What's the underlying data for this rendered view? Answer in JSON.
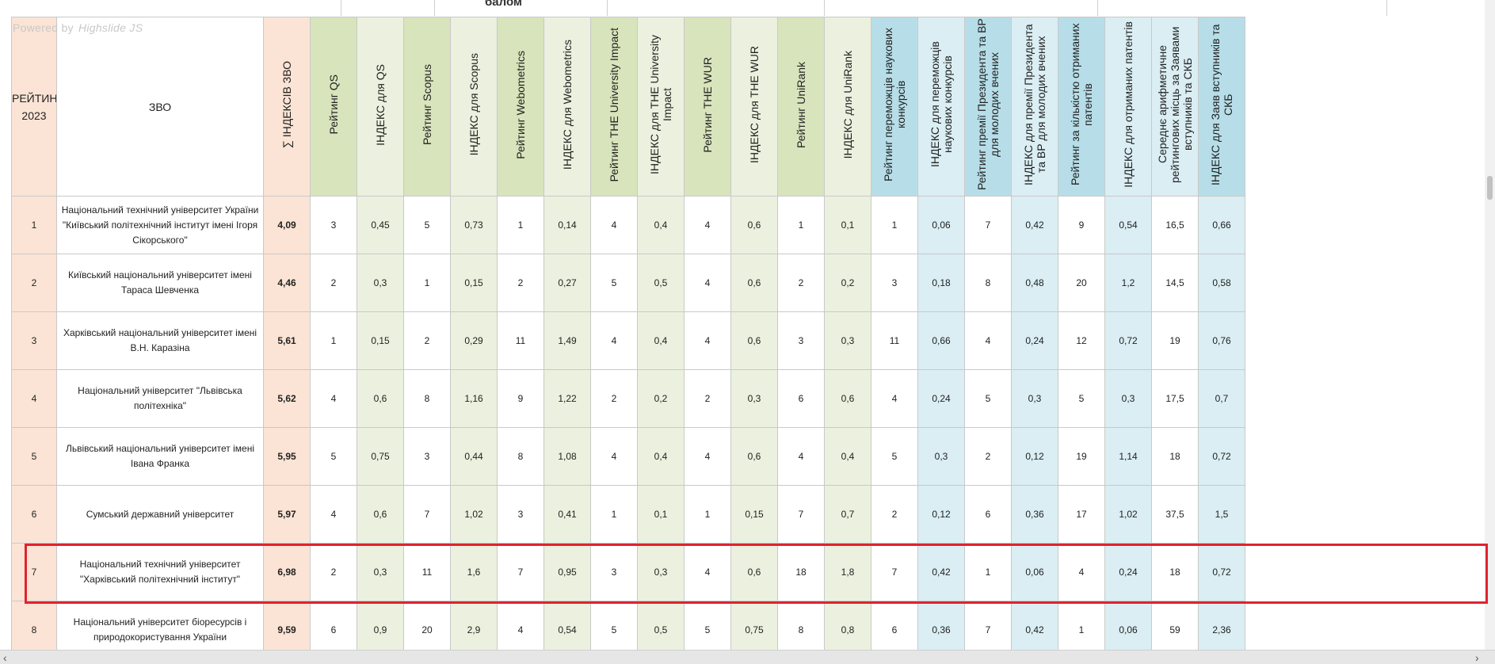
{
  "viewer": {
    "powered_by": "Powered by",
    "powered_brand": "Highslide JS",
    "top_strip_fragment": "балом"
  },
  "table": {
    "headers": {
      "rank": [
        "РЕЙТИНГ",
        "2023"
      ],
      "name": "ЗВО",
      "sum": "∑ ІНДЕКСІВ ЗВО",
      "cols": [
        "Рейтинг QS",
        "ІНДЕКС для QS",
        "Рейтинг Scopus",
        "ІНДЕКС для Scopus",
        "Рейтинг Webometrics",
        "ІНДЕКС для Webometrics",
        "Рейтинг THE University Impact",
        "ІНДЕКС для THE University Impact",
        "Рейтинг THE  WUR",
        "ІНДЕКС для THE  WUR",
        "Рейтинг UniRank",
        "ІНДЕКС для UniRank",
        "Рейтинг переможців наукових конкурсів",
        "ІНДЕКС для переможців наукових конкурсів",
        "Рейтинг премії Президента та ВР для молодих вчених",
        "ІНДЕКС для премії Президента та ВР для молодих вчених",
        "Рейтинг за кількістю отриманих  патентів",
        "ІНДЕКС для отриманих патентів",
        "Середнє арифметичне рейтингових місць за Заявами вступників та СКБ",
        "ІНДЕКС для Заяв вступників та СКБ"
      ]
    },
    "rows": [
      {
        "rank": "1",
        "name": "Національний технічний університет України \"Київський політехнічний інститут імені Ігоря Сікорського\"",
        "sum": "4,09",
        "values": [
          "3",
          "0,45",
          "5",
          "0,73",
          "1",
          "0,14",
          "4",
          "0,4",
          "4",
          "0,6",
          "1",
          "0,1",
          "1",
          "0,06",
          "7",
          "0,42",
          "9",
          "0,54",
          "16,5",
          "0,66"
        ]
      },
      {
        "rank": "2",
        "name": "Київський національний університет імені Тараса Шевченка",
        "sum": "4,46",
        "values": [
          "2",
          "0,3",
          "1",
          "0,15",
          "2",
          "0,27",
          "5",
          "0,5",
          "4",
          "0,6",
          "2",
          "0,2",
          "3",
          "0,18",
          "8",
          "0,48",
          "20",
          "1,2",
          "14,5",
          "0,58"
        ]
      },
      {
        "rank": "3",
        "name": "Харківський національний університет імені В.Н. Каразіна",
        "sum": "5,61",
        "values": [
          "1",
          "0,15",
          "2",
          "0,29",
          "11",
          "1,49",
          "4",
          "0,4",
          "4",
          "0,6",
          "3",
          "0,3",
          "11",
          "0,66",
          "4",
          "0,24",
          "12",
          "0,72",
          "19",
          "0,76"
        ]
      },
      {
        "rank": "4",
        "name": "Національний університет \"Львівська політехніка\"",
        "sum": "5,62",
        "values": [
          "4",
          "0,6",
          "8",
          "1,16",
          "9",
          "1,22",
          "2",
          "0,2",
          "2",
          "0,3",
          "6",
          "0,6",
          "4",
          "0,24",
          "5",
          "0,3",
          "5",
          "0,3",
          "17,5",
          "0,7"
        ]
      },
      {
        "rank": "5",
        "name": "Львівський національний університет імені Івана Франка",
        "sum": "5,95",
        "values": [
          "5",
          "0,75",
          "3",
          "0,44",
          "8",
          "1,08",
          "4",
          "0,4",
          "4",
          "0,6",
          "4",
          "0,4",
          "5",
          "0,3",
          "2",
          "0,12",
          "19",
          "1,14",
          "18",
          "0,72"
        ]
      },
      {
        "rank": "6",
        "name": "Сумський державний університет",
        "sum": "5,97",
        "values": [
          "4",
          "0,6",
          "7",
          "1,02",
          "3",
          "0,41",
          "1",
          "0,1",
          "1",
          "0,15",
          "7",
          "0,7",
          "2",
          "0,12",
          "6",
          "0,36",
          "17",
          "1,02",
          "37,5",
          "1,5"
        ]
      },
      {
        "rank": "7",
        "name": "Національний технічний університет \"Харківський політехнічний інститут\"",
        "sum": "6,98",
        "values": [
          "2",
          "0,3",
          "11",
          "1,6",
          "7",
          "0,95",
          "3",
          "0,3",
          "4",
          "0,6",
          "18",
          "1,8",
          "7",
          "0,42",
          "1",
          "0,06",
          "4",
          "0,24",
          "18",
          "0,72"
        ]
      },
      {
        "rank": "8",
        "name": "Національний університет біоресурсів і природокористування України",
        "sum": "9,59",
        "values": [
          "6",
          "0,9",
          "20",
          "2,9",
          "4",
          "0,54",
          "5",
          "0,5",
          "5",
          "0,75",
          "8",
          "0,8",
          "6",
          "0,36",
          "7",
          "0,42",
          "1",
          "0,06",
          "59",
          "2,36"
        ]
      }
    ]
  },
  "scroll": {
    "left_arrow": "‹",
    "right_arrow": "›"
  },
  "colors": {
    "rank_bg": "#fbe4d5",
    "green_dark": "#d8e4bc",
    "green_light": "#ebf1de",
    "blue_dark": "#b7dee8",
    "blue_light": "#daeef3",
    "highlight": "#e0232e"
  }
}
